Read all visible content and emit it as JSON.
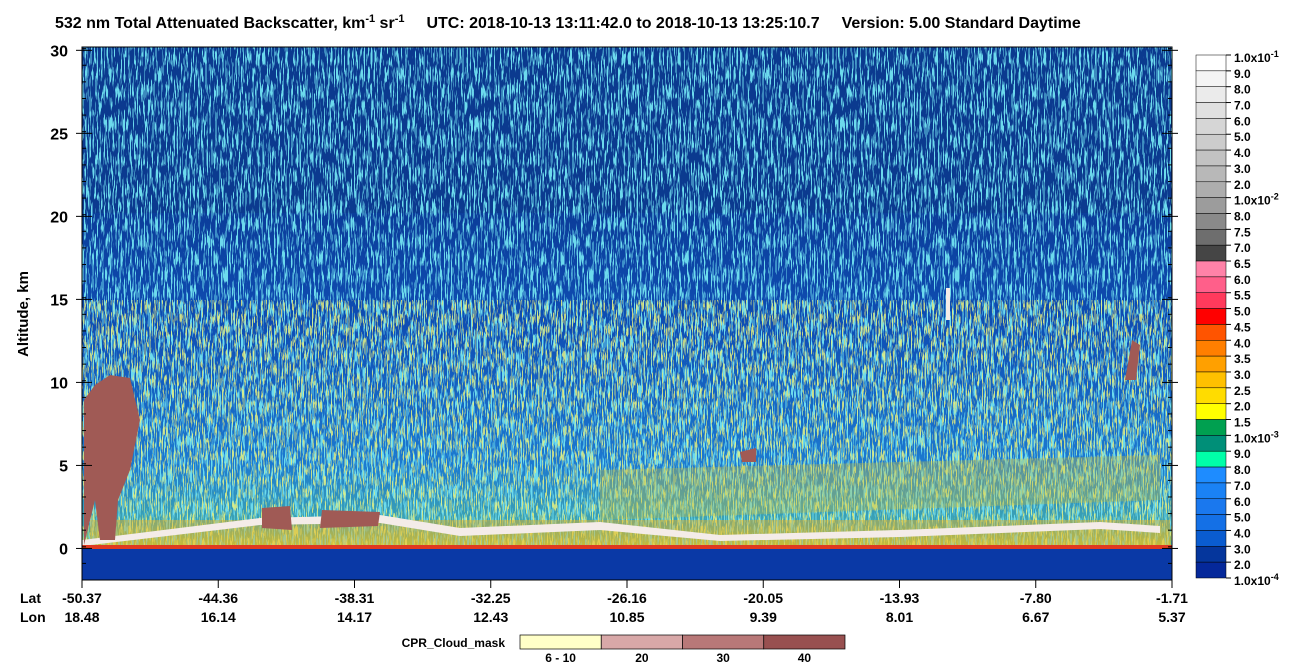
{
  "chart_data": {
    "type": "curtain",
    "title": {
      "prefix": "532 nm Total Attenuated Backscatter, km",
      "exp1": "-1",
      "mid": " sr",
      "exp2": "-1",
      "utc": "UTC:  2018-10-13 13:11:42.0  to  2018-10-13 13:25:10.7",
      "version": "Version: 5.00  Standard  Daytime"
    },
    "y_label": "Altitude, km",
    "ylim": [
      -1.9,
      30.2
    ],
    "yticks": [
      0,
      5,
      10,
      15,
      20,
      25,
      30
    ],
    "x_rows": [
      {
        "name": "Lat",
        "labels": [
          "-50.37",
          "-44.36",
          "-38.31",
          "-32.25",
          "-26.16",
          "-20.05",
          "-13.93",
          "-7.80",
          "-1.71"
        ]
      },
      {
        "name": "Lon",
        "labels": [
          "18.48",
          "16.14",
          "14.17",
          "12.43",
          "10.85",
          "9.39",
          "8.01",
          "6.67",
          "5.37"
        ]
      }
    ],
    "colorbar": {
      "labels": [
        {
          "base": "1.0x10",
          "exp": "-1"
        },
        "9.0",
        "8.0",
        "7.0",
        "6.0",
        "5.0",
        "4.0",
        "3.0",
        "2.0",
        {
          "base": "1.0x10",
          "exp": "-2"
        },
        "8.0",
        "7.5",
        "7.0",
        "6.5",
        "6.0",
        "5.5",
        "5.0",
        "4.5",
        "4.0",
        "3.5",
        "3.0",
        "2.5",
        "2.0",
        "1.5",
        {
          "base": "1.0x10",
          "exp": "-3"
        },
        "9.0",
        "8.0",
        "7.0",
        "6.0",
        "5.0",
        "4.0",
        "3.0",
        "2.0",
        {
          "base": "1.0x10",
          "exp": "-4"
        }
      ],
      "colors": [
        "#ffffff",
        "#f4f4f4",
        "#ebebeb",
        "#e0e0e0",
        "#d6d6d6",
        "#cccccc",
        "#c2c2c2",
        "#b8b8b8",
        "#adadad",
        "#9c9c9c",
        "#8a8a8a",
        "#6e6e6e",
        "#454545",
        "#ff82a8",
        "#ff5f8a",
        "#ff3a5c",
        "#ff0000",
        "#ff5400",
        "#ff7f00",
        "#ffa000",
        "#ffc000",
        "#ffdc00",
        "#ffff00",
        "#00a050",
        "#008f78",
        "#00ffa8",
        "#1e8cff",
        "#1a82f5",
        "#1a78ee",
        "#1470e6",
        "#0a5cd0",
        "#05369c",
        "#05289a"
      ]
    },
    "cpr_legend": {
      "title": "CPR_Cloud_mask",
      "labels": [
        "6 - 10",
        "20",
        "30",
        "40"
      ],
      "colors": [
        "#ffffc8",
        "#d8a8a8",
        "#b87878",
        "#985050"
      ]
    }
  }
}
